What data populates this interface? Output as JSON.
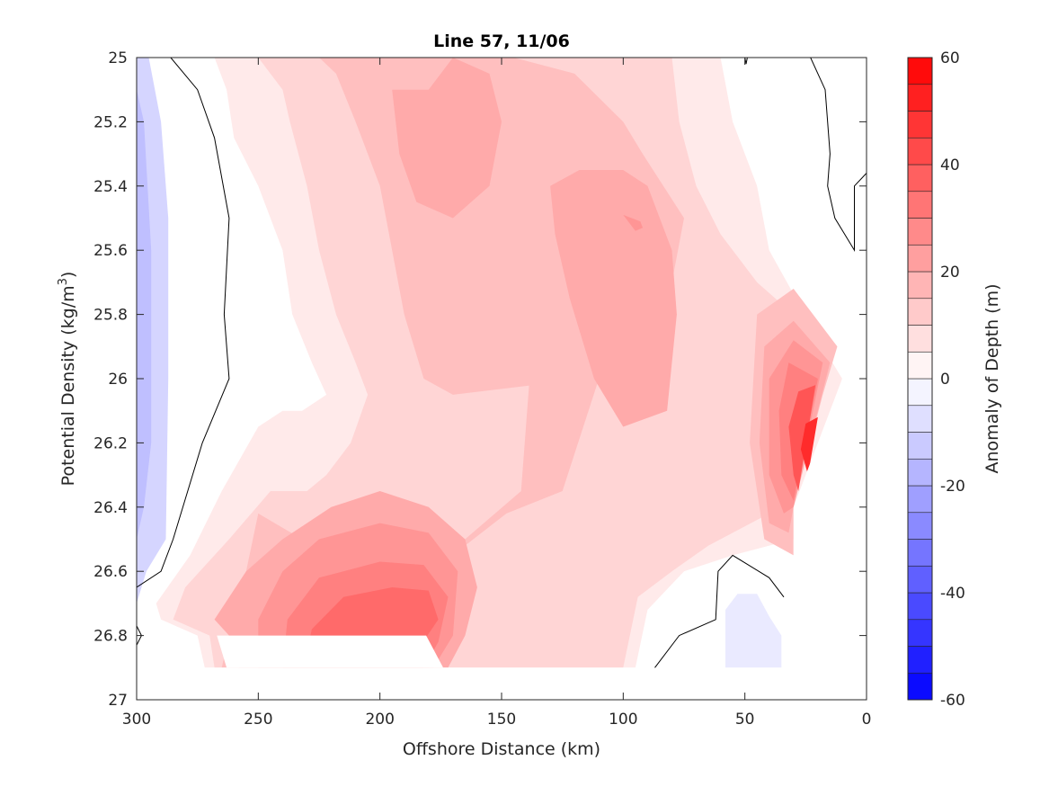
{
  "chart_data": {
    "type": "contour",
    "title": "Line 57, 11/06",
    "xlabel": "Offshore Distance (km)",
    "ylabel_main": "Potential Density (kg/m",
    "ylabel_sup": "3",
    "ylabel_end": ")",
    "colorbar_label": "Anomaly of Depth (m)",
    "xlim": [
      300,
      0
    ],
    "xaxis_reversed": true,
    "ylim": [
      25,
      27
    ],
    "yaxis_reversed": true,
    "xticks": [
      300,
      250,
      200,
      150,
      100,
      50,
      0
    ],
    "yticks": [
      25,
      25.2,
      25.4,
      25.6,
      25.8,
      26,
      26.2,
      26.4,
      26.6,
      26.8,
      27
    ],
    "clim": [
      -60,
      60
    ],
    "cbar_ticks": [
      -60,
      -40,
      -20,
      0,
      20,
      40,
      60
    ],
    "contour_interval": 5,
    "colormap_endpoints": {
      "negative": "#0000ff",
      "zero": "#ffffff",
      "positive": "#ff0000"
    },
    "regions": [
      {
        "name": "west-negative-strip",
        "level": -10,
        "points": [
          [
            300,
            25.0
          ],
          [
            295,
            25.0
          ],
          [
            290,
            25.2
          ],
          [
            287,
            25.5
          ],
          [
            287,
            26.0
          ],
          [
            288,
            26.5
          ],
          [
            296,
            26.6
          ],
          [
            300,
            26.7
          ]
        ]
      },
      {
        "name": "west-negative-core",
        "level": -15,
        "points": [
          [
            300,
            25.1
          ],
          [
            297,
            25.2
          ],
          [
            294,
            25.6
          ],
          [
            294,
            26.2
          ],
          [
            297,
            26.4
          ],
          [
            300,
            26.5
          ]
        ]
      },
      {
        "name": "nearshore-negative-blob",
        "level": -5,
        "points": [
          [
            58,
            26.88
          ],
          [
            58,
            26.72
          ],
          [
            53,
            26.67
          ],
          [
            45,
            26.67
          ],
          [
            40,
            26.74
          ],
          [
            35,
            26.8
          ],
          [
            35,
            26.9
          ],
          [
            58,
            26.9
          ]
        ]
      },
      {
        "name": "main-positive-5",
        "level": 5,
        "points": [
          [
            268,
            25.0
          ],
          [
            60,
            25.0
          ],
          [
            55,
            25.2
          ],
          [
            45,
            25.4
          ],
          [
            40,
            25.6
          ],
          [
            18,
            25.9
          ],
          [
            10,
            26.0
          ],
          [
            30,
            26.5
          ],
          [
            55,
            26.55
          ],
          [
            75,
            26.6
          ],
          [
            90,
            26.72
          ],
          [
            95,
            26.9
          ],
          [
            272,
            26.9
          ],
          [
            275,
            26.8
          ],
          [
            290,
            26.75
          ],
          [
            292,
            26.7
          ],
          [
            278,
            26.55
          ],
          [
            265,
            26.35
          ],
          [
            250,
            26.15
          ],
          [
            240,
            26.1
          ],
          [
            232,
            26.1
          ],
          [
            222,
            26.05
          ],
          [
            228,
            25.95
          ],
          [
            236,
            25.8
          ],
          [
            240,
            25.6
          ],
          [
            250,
            25.4
          ],
          [
            260,
            25.25
          ],
          [
            263,
            25.1
          ]
        ]
      },
      {
        "name": "main-positive-10",
        "level": 10,
        "points": [
          [
            250,
            25.0
          ],
          [
            80,
            25.0
          ],
          [
            77,
            25.2
          ],
          [
            70,
            25.4
          ],
          [
            60,
            25.55
          ],
          [
            45,
            25.7
          ],
          [
            30,
            25.8
          ],
          [
            22,
            26.0
          ],
          [
            35,
            26.4
          ],
          [
            65,
            26.52
          ],
          [
            80,
            26.6
          ],
          [
            94,
            26.68
          ],
          [
            100,
            26.9
          ],
          [
            268,
            26.9
          ],
          [
            270,
            26.8
          ],
          [
            285,
            26.75
          ],
          [
            280,
            26.65
          ],
          [
            262,
            26.5
          ],
          [
            245,
            26.35
          ],
          [
            230,
            26.35
          ],
          [
            222,
            26.3
          ],
          [
            212,
            26.2
          ],
          [
            205,
            26.05
          ],
          [
            210,
            25.95
          ],
          [
            218,
            25.8
          ],
          [
            225,
            25.6
          ],
          [
            230,
            25.4
          ],
          [
            237,
            25.2
          ],
          [
            240,
            25.1
          ]
        ]
      },
      {
        "name": "main-positive-15",
        "level": 15,
        "points": [
          [
            225,
            25.0
          ],
          [
            145,
            25.0
          ],
          [
            120,
            25.05
          ],
          [
            100,
            25.2
          ],
          [
            92,
            25.3
          ],
          [
            75,
            25.5
          ],
          [
            80,
            25.7
          ],
          [
            88,
            25.8
          ],
          [
            110,
            26.0
          ],
          [
            125,
            26.35
          ],
          [
            148,
            26.42
          ],
          [
            165,
            26.52
          ],
          [
            185,
            26.55
          ],
          [
            212,
            26.58
          ],
          [
            232,
            26.5
          ],
          [
            250,
            26.42
          ],
          [
            255,
            26.6
          ],
          [
            262,
            26.8
          ],
          [
            265,
            26.9
          ],
          [
            180,
            26.9
          ],
          [
            172,
            26.85
          ],
          [
            165,
            26.75
          ],
          [
            165,
            26.5
          ],
          [
            142,
            26.35
          ],
          [
            140,
            26.15
          ],
          [
            138,
            25.95
          ],
          [
            130,
            25.75
          ],
          [
            127,
            25.6
          ],
          [
            125,
            25.5
          ],
          [
            120,
            25.58
          ],
          [
            118,
            25.85
          ],
          [
            115,
            26.0
          ],
          [
            170,
            26.05
          ],
          [
            182,
            26.0
          ],
          [
            190,
            25.8
          ],
          [
            200,
            25.4
          ],
          [
            210,
            25.2
          ],
          [
            218,
            25.05
          ]
        ]
      },
      {
        "name": "center-positive-20",
        "level": 20,
        "points": [
          [
            180,
            25.1
          ],
          [
            170,
            25.0
          ],
          [
            155,
            25.05
          ],
          [
            150,
            25.2
          ],
          [
            155,
            25.4
          ],
          [
            170,
            25.5
          ],
          [
            185,
            25.45
          ],
          [
            192,
            25.3
          ],
          [
            195,
            25.1
          ]
        ]
      },
      {
        "name": "east-lens-positive-20",
        "level": 20,
        "points": [
          [
            130,
            25.4
          ],
          [
            118,
            25.35
          ],
          [
            100,
            25.35
          ],
          [
            90,
            25.4
          ],
          [
            80,
            25.6
          ],
          [
            78,
            25.8
          ],
          [
            82,
            26.1
          ],
          [
            100,
            26.15
          ],
          [
            112,
            26.0
          ],
          [
            122,
            25.75
          ],
          [
            128,
            25.55
          ]
        ]
      },
      {
        "name": "south-positive-20",
        "level": 20,
        "points": [
          [
            268,
            26.75
          ],
          [
            255,
            26.6
          ],
          [
            240,
            26.5
          ],
          [
            230,
            26.45
          ],
          [
            220,
            26.4
          ],
          [
            200,
            26.35
          ],
          [
            180,
            26.4
          ],
          [
            165,
            26.5
          ],
          [
            160,
            26.65
          ],
          [
            165,
            26.8
          ],
          [
            172,
            26.9
          ],
          [
            258,
            26.9
          ],
          [
            262,
            26.8
          ]
        ]
      },
      {
        "name": "south-positive-25",
        "level": 25,
        "points": [
          [
            250,
            26.75
          ],
          [
            240,
            26.6
          ],
          [
            225,
            26.5
          ],
          [
            200,
            26.45
          ],
          [
            180,
            26.48
          ],
          [
            168,
            26.6
          ],
          [
            170,
            26.8
          ],
          [
            178,
            26.9
          ],
          [
            250,
            26.9
          ]
        ]
      },
      {
        "name": "south-positive-30",
        "level": 30,
        "points": [
          [
            238,
            26.75
          ],
          [
            225,
            26.62
          ],
          [
            200,
            26.57
          ],
          [
            182,
            26.58
          ],
          [
            172,
            26.68
          ],
          [
            176,
            26.82
          ],
          [
            182,
            26.9
          ],
          [
            240,
            26.9
          ]
        ]
      },
      {
        "name": "south-positive-35",
        "level": 35,
        "points": [
          [
            228,
            26.78
          ],
          [
            215,
            26.68
          ],
          [
            195,
            26.65
          ],
          [
            180,
            26.66
          ],
          [
            176,
            26.75
          ],
          [
            185,
            26.85
          ],
          [
            230,
            26.85
          ]
        ]
      },
      {
        "name": "nearshore-positive-15",
        "level": 15,
        "points": [
          [
            12,
            25.9
          ],
          [
            30,
            25.72
          ],
          [
            45,
            25.8
          ],
          [
            48,
            26.2
          ],
          [
            42,
            26.5
          ],
          [
            30,
            26.55
          ],
          [
            30,
            26.4
          ],
          [
            18,
            26.05
          ]
        ]
      },
      {
        "name": "nearshore-positive-20",
        "level": 20,
        "points": [
          [
            15,
            25.95
          ],
          [
            30,
            25.82
          ],
          [
            42,
            25.9
          ],
          [
            44,
            26.2
          ],
          [
            40,
            26.45
          ],
          [
            32,
            26.48
          ],
          [
            30,
            26.4
          ]
        ]
      },
      {
        "name": "nearshore-positive-25",
        "level": 25,
        "points": [
          [
            18,
            25.95
          ],
          [
            30,
            25.88
          ],
          [
            40,
            26.0
          ],
          [
            40,
            26.3
          ],
          [
            34,
            26.42
          ],
          [
            30,
            26.4
          ]
        ]
      },
      {
        "name": "nearshore-positive-30",
        "level": 30,
        "points": [
          [
            20,
            26.0
          ],
          [
            32,
            25.95
          ],
          [
            36,
            26.1
          ],
          [
            35,
            26.3
          ],
          [
            30,
            26.38
          ]
        ]
      },
      {
        "name": "nearshore-positive-40",
        "level": 40,
        "points": [
          [
            21,
            26.02
          ],
          [
            28,
            26.04
          ],
          [
            32,
            26.15
          ],
          [
            30,
            26.3
          ],
          [
            28,
            26.35
          ]
        ]
      },
      {
        "name": "nearshore-positive-50",
        "level": 50,
        "points": [
          [
            20,
            26.12
          ],
          [
            25,
            26.14
          ],
          [
            27,
            26.22
          ],
          [
            24,
            26.3
          ]
        ]
      },
      {
        "name": "east-lens-small-25",
        "level": 25,
        "points": [
          [
            100,
            25.49
          ],
          [
            93,
            25.51
          ],
          [
            92,
            25.53
          ],
          [
            95,
            25.54
          ]
        ]
      }
    ],
    "blank_regions": [
      {
        "name": "bottom-nodata-west",
        "points": [
          [
            300,
            26.9
          ],
          [
            300,
            27.0
          ],
          [
            0,
            27.0
          ],
          [
            0,
            26.9
          ]
        ]
      },
      {
        "name": "bottom-nodata-notch",
        "points": [
          [
            267,
            26.8
          ],
          [
            181,
            26.8
          ],
          [
            174,
            26.9
          ],
          [
            263,
            26.9
          ]
        ]
      },
      {
        "name": "east-nodata",
        "points": [
          [
            0,
            25.36
          ],
          [
            3,
            25.4
          ],
          [
            5,
            25.85
          ],
          [
            5,
            25.9
          ],
          [
            30,
            26.4
          ],
          [
            30,
            26.9
          ],
          [
            0,
            26.9
          ]
        ]
      }
    ],
    "zero_contours": [
      {
        "name": "zero-contour-west",
        "points": [
          [
            286,
            25.0
          ],
          [
            275,
            25.1
          ],
          [
            268,
            25.25
          ],
          [
            262,
            25.5
          ],
          [
            264,
            25.8
          ],
          [
            262,
            26.0
          ],
          [
            273,
            26.2
          ],
          [
            285,
            26.5
          ],
          [
            290,
            26.6
          ],
          [
            300,
            26.65
          ]
        ]
      },
      {
        "name": "zero-contour-west-edge",
        "points": [
          [
            300,
            26.77
          ],
          [
            298,
            26.8
          ],
          [
            300,
            26.83
          ]
        ]
      },
      {
        "name": "zero-contour-nearshore",
        "points": [
          [
            87,
            26.9
          ],
          [
            77,
            26.8
          ],
          [
            62,
            26.75
          ],
          [
            61,
            26.6
          ],
          [
            55,
            26.55
          ],
          [
            40,
            26.62
          ],
          [
            34,
            26.68
          ]
        ]
      },
      {
        "name": "zero-contour-northeast",
        "points": [
          [
            23,
            25.0
          ],
          [
            17,
            25.1
          ],
          [
            15,
            25.3
          ],
          [
            16,
            25.4
          ],
          [
            13,
            25.5
          ],
          [
            5,
            25.6
          ],
          [
            5,
            25.4
          ],
          [
            0,
            25.36
          ]
        ]
      },
      {
        "name": "zero-contour-top-tick",
        "points": [
          [
            50,
            25.0
          ],
          [
            49.5,
            25.02
          ],
          [
            49,
            25.0
          ]
        ]
      }
    ]
  }
}
